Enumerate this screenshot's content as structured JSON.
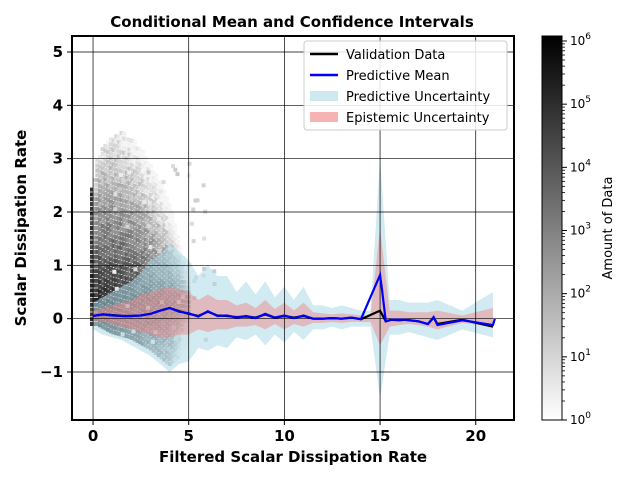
{
  "chart_data": {
    "type": "line",
    "title": "Conditional Mean and Confidence Intervals",
    "xlabel": "Filtered Scalar Dissipation Rate",
    "ylabel": "Scalar Dissipation Rate",
    "xlim": [
      -1.1,
      22
    ],
    "ylim": [
      -1.9,
      5.3
    ],
    "x_ticks": [
      0,
      5,
      10,
      15,
      20
    ],
    "y_ticks": [
      -1,
      0,
      1,
      2,
      3,
      4,
      5
    ],
    "y_tick_labels": [
      "−1",
      "0",
      "1",
      "2",
      "3",
      "4",
      "5"
    ],
    "grid": true,
    "legend_position": "top-right",
    "legend": [
      {
        "label": "Validation Data",
        "color": "#000000",
        "kind": "line"
      },
      {
        "label": "Predictive Mean",
        "color": "#0000ff",
        "kind": "line"
      },
      {
        "label": "Predictive Uncertainty",
        "color": "#add8e6",
        "kind": "patch"
      },
      {
        "label": "Epistemic Uncertainty",
        "color": "#f08080",
        "kind": "patch"
      }
    ],
    "colorbar": {
      "label": "Amount of Data",
      "scale": "log",
      "range": [
        1,
        1200000
      ],
      "tick_exponents": [
        0,
        1,
        2,
        3,
        4,
        5,
        6
      ]
    },
    "series": [
      {
        "name": "Validation Data",
        "x": [
          0.0,
          0.5,
          1.0,
          1.5,
          2.0,
          2.5,
          3.0,
          3.5,
          4.0,
          4.5,
          5.0,
          5.5,
          6.0,
          6.5,
          7.0,
          7.5,
          8.0,
          8.5,
          9.0,
          9.5,
          10.0,
          10.5,
          11.0,
          11.5,
          12.0,
          12.5,
          13.0,
          13.5,
          14.0,
          15.0,
          15.3,
          15.6,
          16.0,
          16.3,
          17.0,
          17.5,
          17.8,
          18.0,
          19.3,
          20.9
        ],
        "y": [
          0.05,
          0.08,
          0.07,
          0.05,
          0.05,
          0.06,
          0.09,
          0.15,
          0.2,
          0.14,
          0.09,
          0.05,
          0.13,
          0.06,
          0.05,
          0.03,
          0.04,
          0.02,
          0.08,
          0.02,
          0.05,
          0.02,
          0.05,
          0.0,
          0.0,
          0.01,
          0.0,
          0.02,
          -0.01,
          0.15,
          -0.05,
          -0.02,
          -0.03,
          -0.02,
          -0.05,
          -0.1,
          0.02,
          -0.1,
          -0.02,
          -0.15
        ]
      },
      {
        "name": "Predictive Mean",
        "x": [
          0.0,
          0.5,
          1.0,
          1.5,
          2.0,
          2.5,
          3.0,
          3.5,
          4.0,
          4.5,
          5.0,
          5.5,
          6.0,
          6.5,
          7.0,
          7.5,
          8.0,
          8.5,
          9.0,
          9.5,
          10.0,
          10.5,
          11.0,
          11.5,
          12.0,
          12.5,
          13.0,
          13.5,
          14.0,
          15.0,
          15.1,
          15.3,
          15.6,
          16.0,
          16.3,
          17.0,
          17.5,
          17.8,
          18.0,
          19.3,
          20.9,
          21.0
        ],
        "y": [
          0.05,
          0.08,
          0.06,
          0.05,
          0.05,
          0.06,
          0.09,
          0.15,
          0.2,
          0.13,
          0.1,
          0.04,
          0.14,
          0.05,
          0.06,
          0.02,
          0.05,
          0.01,
          0.09,
          0.02,
          0.06,
          0.01,
          0.06,
          0.0,
          0.0,
          0.01,
          0.0,
          0.02,
          -0.01,
          0.82,
          0.55,
          -0.05,
          -0.02,
          -0.02,
          -0.02,
          -0.05,
          -0.1,
          0.03,
          -0.12,
          -0.03,
          -0.12,
          0.0
        ]
      },
      {
        "name": "Predictive Uncertainty",
        "x": [
          0.0,
          0.5,
          1.0,
          1.5,
          2.0,
          2.5,
          3.0,
          3.5,
          4.0,
          4.5,
          5.0,
          5.5,
          6.0,
          6.5,
          7.0,
          7.5,
          8.0,
          8.5,
          9.0,
          9.5,
          10.0,
          10.5,
          11.0,
          11.5,
          12.0,
          12.5,
          13.0,
          13.5,
          14.0,
          14.5,
          15.0,
          15.5,
          16.0,
          16.5,
          17.0,
          17.5,
          18.0,
          19.3,
          20.9
        ],
        "lower": [
          -0.2,
          -0.3,
          -0.35,
          -0.4,
          -0.5,
          -0.6,
          -0.7,
          -0.85,
          -1.0,
          -0.85,
          -0.8,
          -0.55,
          -0.6,
          -0.5,
          -0.55,
          -0.35,
          -0.4,
          -0.3,
          -0.5,
          -0.3,
          -0.45,
          -0.25,
          -0.4,
          -0.2,
          -0.2,
          -0.15,
          -0.2,
          -0.15,
          -0.15,
          -0.15,
          -1.5,
          -0.3,
          -0.3,
          -0.25,
          -0.3,
          -0.35,
          -0.4,
          -0.2,
          -0.35
        ],
        "upper": [
          0.3,
          0.4,
          0.5,
          0.6,
          0.7,
          0.85,
          1.1,
          1.2,
          1.4,
          1.25,
          1.1,
          0.8,
          1.0,
          0.8,
          0.8,
          0.5,
          0.7,
          0.45,
          0.7,
          0.4,
          0.6,
          0.35,
          0.6,
          0.25,
          0.25,
          0.2,
          0.25,
          0.2,
          0.15,
          0.15,
          3.0,
          0.35,
          0.35,
          0.3,
          0.3,
          0.3,
          0.35,
          0.15,
          0.5
        ]
      },
      {
        "name": "Epistemic Uncertainty",
        "x": [
          0.0,
          0.5,
          1.0,
          1.5,
          2.0,
          2.5,
          3.0,
          3.5,
          4.0,
          4.5,
          5.0,
          5.5,
          6.0,
          6.5,
          7.0,
          7.5,
          8.0,
          8.5,
          9.0,
          9.5,
          10.0,
          10.5,
          11.0,
          11.5,
          12.0,
          12.5,
          13.0,
          13.5,
          14.0,
          14.5,
          15.0,
          15.5,
          16.0,
          16.5,
          17.0,
          17.5,
          18.0,
          19.3,
          20.9
        ],
        "lower": [
          -0.05,
          -0.05,
          -0.1,
          -0.15,
          -0.2,
          -0.25,
          -0.3,
          -0.35,
          -0.35,
          -0.3,
          -0.3,
          -0.2,
          -0.25,
          -0.2,
          -0.2,
          -0.15,
          -0.15,
          -0.12,
          -0.2,
          -0.1,
          -0.2,
          -0.1,
          -0.15,
          -0.08,
          -0.08,
          -0.06,
          -0.08,
          -0.06,
          -0.06,
          -0.06,
          -0.5,
          -0.15,
          -0.12,
          -0.1,
          -0.12,
          -0.15,
          -0.2,
          -0.08,
          -0.15
        ],
        "upper": [
          0.15,
          0.2,
          0.25,
          0.3,
          0.35,
          0.45,
          0.5,
          0.55,
          0.6,
          0.55,
          0.5,
          0.35,
          0.45,
          0.35,
          0.35,
          0.25,
          0.3,
          0.2,
          0.35,
          0.18,
          0.3,
          0.15,
          0.3,
          0.12,
          0.1,
          0.08,
          0.1,
          0.08,
          0.06,
          0.06,
          1.7,
          0.15,
          0.15,
          0.12,
          0.12,
          0.12,
          0.15,
          0.06,
          0.2
        ]
      }
    ],
    "hexbin_density": {
      "description_free": true,
      "x": [
        0.0,
        0.25,
        0.5,
        0.75,
        1.0,
        1.5,
        2.0,
        2.5,
        3.0,
        3.5,
        4.0,
        4.5,
        5.0
      ],
      "y_max": [
        2.5,
        3.0,
        3.2,
        3.3,
        3.4,
        3.5,
        3.4,
        3.2,
        2.9,
        2.6,
        2.2,
        1.5,
        0.8
      ],
      "y_min": [
        -0.1,
        -0.1,
        -0.15,
        -0.2,
        -0.25,
        -0.3,
        -0.35,
        -0.45,
        -0.55,
        -0.7,
        -0.85,
        -0.7,
        -0.4
      ]
    }
  }
}
